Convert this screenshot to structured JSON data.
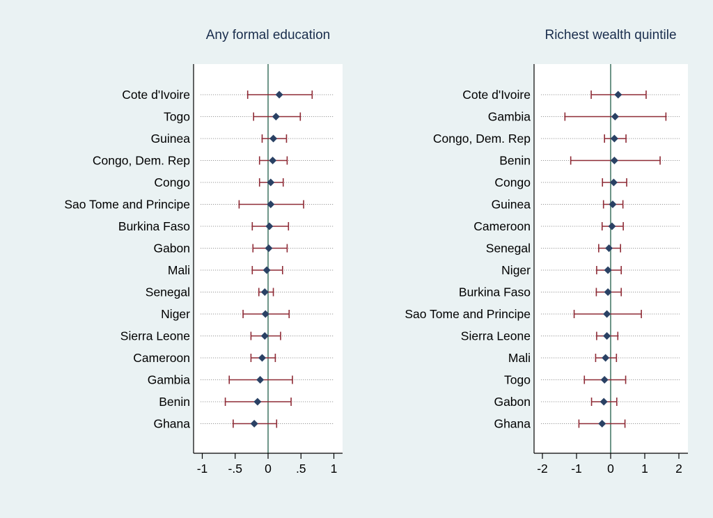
{
  "chart_data": [
    {
      "type": "coefficient_plot",
      "title": "Any formal education",
      "xlim": [
        -1.1,
        1.1
      ],
      "xticks": [
        -1,
        -0.5,
        0,
        0.5,
        1
      ],
      "xtick_labels": [
        "-1",
        "-.5",
        "0",
        ".5",
        "1"
      ],
      "reference_line": 0,
      "grid": true,
      "series": [
        {
          "name": "Cote d'Ivoire",
          "estimate": 0.17,
          "lower": -0.31,
          "upper": 0.67
        },
        {
          "name": "Togo",
          "estimate": 0.12,
          "lower": -0.22,
          "upper": 0.49
        },
        {
          "name": "Guinea",
          "estimate": 0.08,
          "lower": -0.09,
          "upper": 0.28
        },
        {
          "name": "Congo, Dem. Rep",
          "estimate": 0.07,
          "lower": -0.13,
          "upper": 0.29
        },
        {
          "name": "Congo",
          "estimate": 0.04,
          "lower": -0.13,
          "upper": 0.23
        },
        {
          "name": "Sao Tome and Principe",
          "estimate": 0.04,
          "lower": -0.44,
          "upper": 0.54
        },
        {
          "name": "Burkina Faso",
          "estimate": 0.02,
          "lower": -0.24,
          "upper": 0.31
        },
        {
          "name": "Gabon",
          "estimate": 0.01,
          "lower": -0.23,
          "upper": 0.29
        },
        {
          "name": "Mali",
          "estimate": -0.02,
          "lower": -0.24,
          "upper": 0.22
        },
        {
          "name": "Senegal",
          "estimate": -0.05,
          "lower": -0.14,
          "upper": 0.08
        },
        {
          "name": "Niger",
          "estimate": -0.04,
          "lower": -0.38,
          "upper": 0.32
        },
        {
          "name": "Sierra Leone",
          "estimate": -0.05,
          "lower": -0.26,
          "upper": 0.19
        },
        {
          "name": "Cameroon",
          "estimate": -0.09,
          "lower": -0.26,
          "upper": 0.11
        },
        {
          "name": "Gambia",
          "estimate": -0.12,
          "lower": -0.59,
          "upper": 0.37
        },
        {
          "name": "Benin",
          "estimate": -0.16,
          "lower": -0.65,
          "upper": 0.35
        },
        {
          "name": "Ghana",
          "estimate": -0.21,
          "lower": -0.53,
          "upper": 0.13
        }
      ]
    },
    {
      "type": "coefficient_plot",
      "title": "Richest wealth quintile",
      "xlim": [
        -2.2,
        2.3
      ],
      "xticks": [
        -2,
        -1,
        0,
        1,
        2
      ],
      "xtick_labels": [
        "-2",
        "-1",
        "0",
        "1",
        "2"
      ],
      "reference_line": 0,
      "grid": true,
      "series": [
        {
          "name": "Cote d'Ivoire",
          "estimate": 0.22,
          "lower": -0.57,
          "upper": 1.04
        },
        {
          "name": "Gambia",
          "estimate": 0.13,
          "lower": -1.34,
          "upper": 1.62
        },
        {
          "name": "Congo, Dem. Rep",
          "estimate": 0.11,
          "lower": -0.18,
          "upper": 0.45
        },
        {
          "name": "Benin",
          "estimate": 0.11,
          "lower": -1.17,
          "upper": 1.45
        },
        {
          "name": "Congo",
          "estimate": 0.09,
          "lower": -0.24,
          "upper": 0.47
        },
        {
          "name": "Guinea",
          "estimate": 0.06,
          "lower": -0.21,
          "upper": 0.36
        },
        {
          "name": "Cameroon",
          "estimate": 0.04,
          "lower": -0.25,
          "upper": 0.37
        },
        {
          "name": "Senegal",
          "estimate": -0.05,
          "lower": -0.35,
          "upper": 0.29
        },
        {
          "name": "Niger",
          "estimate": -0.08,
          "lower": -0.41,
          "upper": 0.31
        },
        {
          "name": "Burkina Faso",
          "estimate": -0.08,
          "lower": -0.42,
          "upper": 0.31
        },
        {
          "name": "Sao Tome and Principe",
          "estimate": -0.11,
          "lower": -1.07,
          "upper": 0.9
        },
        {
          "name": "Sierra Leone",
          "estimate": -0.11,
          "lower": -0.41,
          "upper": 0.21
        },
        {
          "name": "Mali",
          "estimate": -0.15,
          "lower": -0.44,
          "upper": 0.17
        },
        {
          "name": "Togo",
          "estimate": -0.18,
          "lower": -0.77,
          "upper": 0.44
        },
        {
          "name": "Gabon",
          "estimate": -0.2,
          "lower": -0.56,
          "upper": 0.18
        },
        {
          "name": "Ghana",
          "estimate": -0.25,
          "lower": -0.93,
          "upper": 0.42
        }
      ]
    }
  ],
  "colors": {
    "background": "#eaf2f3",
    "plot_area": "#ffffff",
    "title": "#1a2e4d",
    "ci_line": "#8e2a35",
    "marker": "#2a4164",
    "reference_line": "#4a7b6b",
    "gridline": "#777777",
    "axis": "#000000"
  }
}
